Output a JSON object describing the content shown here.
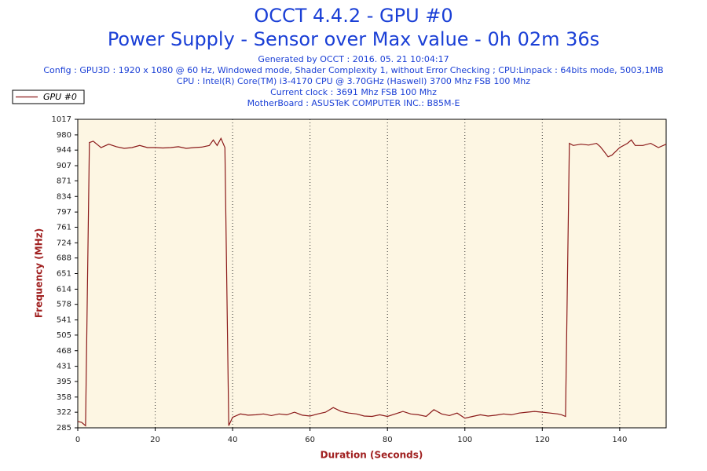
{
  "chart_data": {
    "type": "line",
    "title": "OCCT 4.4.2 - GPU #0",
    "subtitle": "Power Supply - Sensor over Max value - 0h 02m 36s",
    "info": [
      "Generated by OCCT : 2016. 05. 21 10:04:17",
      "Config : GPU3D : 1920 x 1080 @ 60 Hz, Windowed mode, Shader Complexity 1, without Error Checking ; CPU:Linpack : 64bits mode, 5003,1MB",
      "CPU : Intel(R) Core(TM) i3-4170 CPU @ 3.70GHz (Haswell) 3700 Mhz FSB 100 Mhz",
      "Current clock : 3691 Mhz FSB 100 Mhz",
      "MotherBoard : ASUSTeK COMPUTER INC.: B85M-E"
    ],
    "xlabel": "Duration (Seconds)",
    "ylabel": "Frequency (MHz)",
    "x": [
      0,
      1,
      2,
      3,
      4,
      6,
      8,
      10,
      12,
      14,
      16,
      18,
      20,
      22,
      24,
      26,
      28,
      30,
      32,
      34,
      35,
      36,
      37,
      38,
      39,
      40,
      42,
      44,
      46,
      48,
      50,
      52,
      54,
      56,
      58,
      60,
      62,
      64,
      66,
      68,
      70,
      72,
      74,
      76,
      78,
      80,
      82,
      84,
      86,
      88,
      90,
      92,
      94,
      96,
      98,
      100,
      102,
      104,
      106,
      108,
      110,
      112,
      114,
      116,
      118,
      120,
      122,
      124,
      125,
      126,
      127,
      128,
      130,
      132,
      134,
      135,
      136,
      137,
      138,
      140,
      142,
      143,
      144,
      146,
      148,
      150,
      152
    ],
    "series": [
      {
        "name": "GPU #0",
        "color": "#8b1a1a",
        "values": [
          300,
          298,
          290,
          962,
          965,
          950,
          958,
          952,
          948,
          950,
          955,
          950,
          950,
          949,
          950,
          952,
          948,
          950,
          951,
          955,
          968,
          955,
          972,
          950,
          290,
          310,
          318,
          315,
          316,
          318,
          314,
          318,
          316,
          322,
          315,
          313,
          318,
          322,
          333,
          324,
          320,
          318,
          313,
          312,
          316,
          312,
          318,
          324,
          318,
          316,
          312,
          328,
          318,
          314,
          320,
          308,
          312,
          316,
          313,
          315,
          318,
          316,
          320,
          322,
          324,
          322,
          320,
          318,
          316,
          312,
          960,
          955,
          958,
          956,
          960,
          952,
          940,
          928,
          932,
          950,
          960,
          968,
          955,
          955,
          960,
          950,
          958
        ]
      }
    ],
    "xlim": [
      0,
      152
    ],
    "xticks": [
      0,
      20,
      40,
      60,
      80,
      100,
      120,
      140
    ],
    "ylim": [
      285,
      1017
    ],
    "yticks": [
      285,
      322,
      358,
      395,
      431,
      468,
      505,
      541,
      578,
      614,
      651,
      688,
      724,
      761,
      797,
      834,
      871,
      907,
      944,
      980,
      1017
    ],
    "grid": true,
    "legend": "top-left"
  }
}
